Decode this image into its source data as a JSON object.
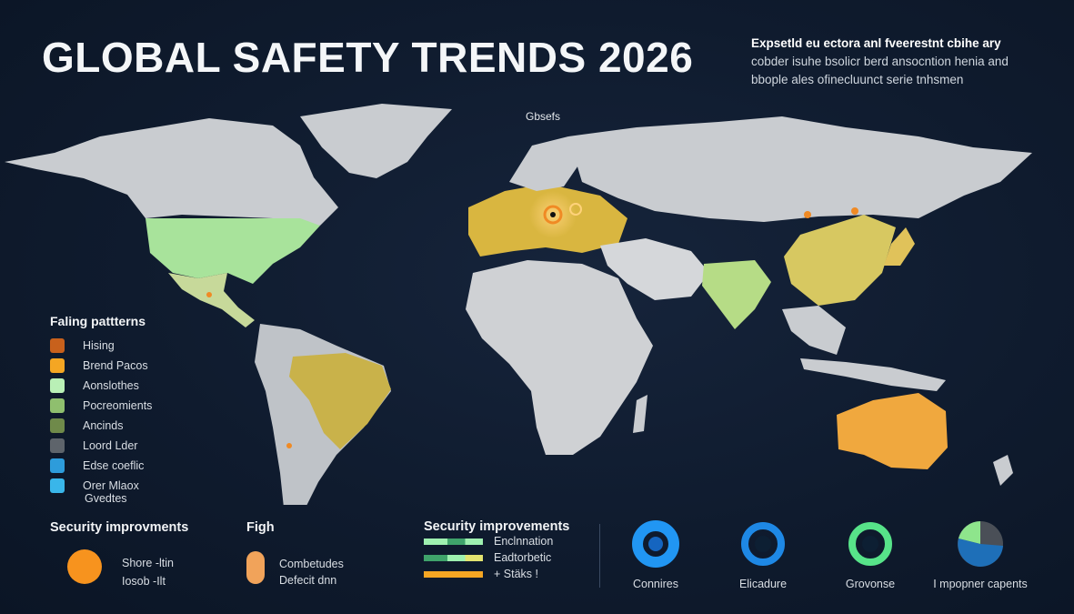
{
  "header": {
    "title": "GLOBAL SAFETY TRENDS 2026",
    "blurb": [
      "Expsetld eu ectora anl fveerestnt cbihe ary",
      "cobder isuhe bsolicr berd ansocntion henia and",
      "bbople ales ofinecluunct serie tnhsmen"
    ]
  },
  "map": {
    "label": "Gbsefs",
    "ocean_color": "#14223a",
    "land_color": "#c9ccd0",
    "hotspot_color": "#f08a24"
  },
  "legend": {
    "title": "Faling pattterns",
    "items": [
      {
        "label": "Hising",
        "color": "#c8611c"
      },
      {
        "label": "Brend Pacos",
        "color": "#f5a623"
      },
      {
        "label": "Aonslothes",
        "color": "#b9f0b6"
      },
      {
        "label": "Pocreomients",
        "color": "#8fbf6e"
      },
      {
        "label": "Ancinds",
        "color": "#6f8a4a"
      },
      {
        "label": "Loord Lder",
        "color": "#5e646b"
      },
      {
        "label": "Edse coeflic",
        "color": "#2d9cdb"
      },
      {
        "label": "Orer Mlaox",
        "color": "#39b6ea"
      }
    ],
    "sub": "Gvedtes"
  },
  "security_left": {
    "title": "Security improvments",
    "lines": [
      "Shore -ltin",
      "Iosob -Ilt"
    ],
    "color": "#f7931e"
  },
  "figure": {
    "title": "Figh",
    "lines": [
      "Combetudes",
      "Defecit dnn"
    ],
    "color": "#f1a35a"
  },
  "security_right": {
    "title": "Security improvements",
    "bars": [
      {
        "label": "Enclnnation",
        "colors": [
          "#9ef0b0",
          "#3fa36b",
          "#9ef0b0"
        ]
      },
      {
        "label": "Eadtorbetic",
        "colors": [
          "#3fa36b",
          "#9ef0b0",
          "#e3e370"
        ]
      },
      {
        "label": "+ Stäks !",
        "colors": [
          "#f5a623",
          "#f5a623",
          "#f5a623"
        ]
      }
    ]
  },
  "donuts": [
    {
      "label": "Connires",
      "colors": [
        "#2196f3",
        "#1565c0"
      ]
    },
    {
      "label": "Elicadure",
      "colors": [
        "#1e88e5",
        "#0d1f33"
      ]
    },
    {
      "label": "Grovonse",
      "colors": [
        "#57e389",
        "#0d1f33"
      ]
    },
    {
      "label": "I mpopner capents",
      "colors": [
        "#8ee58c",
        "#1e6fb8",
        "#4a4f57"
      ]
    }
  ]
}
